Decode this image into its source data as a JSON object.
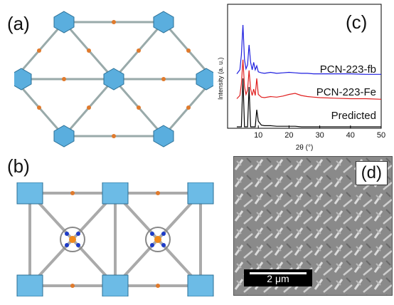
{
  "panels": {
    "a": "(a)",
    "b": "(b)",
    "c": "(c)",
    "d": "(d)"
  },
  "chart_data": {
    "type": "line",
    "xlabel": "2θ (°)",
    "ylabel": "Intensity (a. u.)",
    "xlim": [
      0,
      50
    ],
    "xticks": [
      10,
      20,
      30,
      40,
      50
    ],
    "series": [
      {
        "name": "PCN-223-fb",
        "color": "#1f1fdf",
        "x": [
          3,
          4,
          4.5,
          5,
          5.5,
          6,
          6.5,
          7,
          7.5,
          8,
          8.5,
          9,
          9.5,
          10,
          11,
          12,
          14,
          16,
          18,
          20,
          22,
          24,
          26,
          28,
          30,
          35,
          40,
          45,
          50
        ],
        "values": [
          0.02,
          0.1,
          0.4,
          1.0,
          0.3,
          0.12,
          0.2,
          0.6,
          0.25,
          0.1,
          0.25,
          0.1,
          0.18,
          0.06,
          0.04,
          0.03,
          0.05,
          0.03,
          0.04,
          0.05,
          0.04,
          0.03,
          0.03,
          0.02,
          0.02,
          0.02,
          0.02,
          0.01,
          0.01
        ]
      },
      {
        "name": "PCN-223-Fe",
        "color": "#e01f1f",
        "x": [
          3,
          4,
          4.5,
          5,
          5.5,
          6,
          6.5,
          7,
          7.5,
          8,
          8.5,
          9,
          9.5,
          10,
          11,
          12,
          14,
          16,
          18,
          20,
          22,
          24,
          26,
          28,
          30,
          35,
          40,
          45,
          50
        ],
        "values": [
          0.02,
          0.08,
          0.3,
          0.75,
          0.25,
          0.1,
          0.18,
          0.55,
          0.2,
          0.08,
          0.2,
          0.08,
          0.4,
          0.1,
          0.05,
          0.04,
          0.06,
          0.05,
          0.07,
          0.1,
          0.12,
          0.08,
          0.06,
          0.05,
          0.04,
          0.03,
          0.02,
          0.02,
          0.01
        ]
      },
      {
        "name": "Predicted",
        "color": "#000000",
        "x": [
          3,
          4,
          4.5,
          5,
          5.5,
          6,
          6.5,
          7,
          7.5,
          8,
          8.5,
          9,
          9.5,
          10,
          11,
          12,
          14,
          16,
          18,
          20,
          22,
          24,
          26,
          28,
          30,
          35,
          40,
          45,
          50
        ],
        "values": [
          0,
          0,
          0,
          0.85,
          0,
          0,
          0,
          0.7,
          0,
          0,
          0,
          0,
          0.3,
          0.1,
          0.03,
          0.02,
          0.02,
          0.01,
          0.01,
          0.01,
          0.01,
          0,
          0,
          0,
          0,
          0,
          0,
          0,
          0
        ]
      }
    ]
  },
  "sem": {
    "scalebar": "2 μm"
  }
}
